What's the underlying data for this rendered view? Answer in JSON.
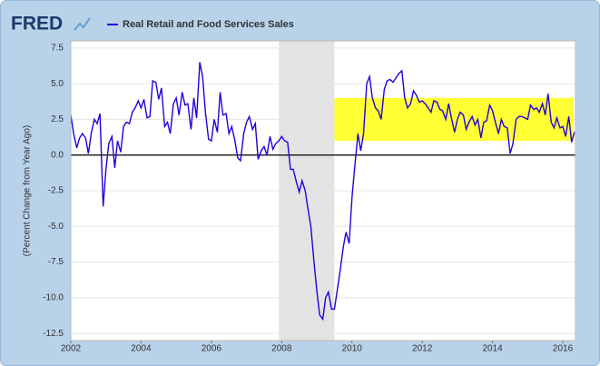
{
  "chart_data": {
    "type": "line",
    "logo": "FRED",
    "ylabel": "(Percent Change from Year Ago)",
    "xlim": [
      2002,
      2016.36
    ],
    "xticks": [
      2002,
      2004,
      2006,
      2008,
      2010,
      2012,
      2014,
      2016
    ],
    "ylim": [
      -13,
      8
    ],
    "yticks": [
      7.5,
      {
        "value": 5,
        "label": "5.0"
      },
      2.5,
      {
        "value": 0,
        "label": "0.0"
      },
      -2.5,
      {
        "value": -5,
        "label": "-5.0"
      },
      -7.5,
      {
        "value": -10,
        "label": "-10.0"
      },
      -12.5
    ],
    "grid": true,
    "recession": [
      2007.92,
      2009.5
    ],
    "highlight": {
      "xlim": [
        2009.5,
        2016.3
      ],
      "ylim": [
        1,
        4
      ],
      "color": "#ffff33"
    },
    "x": [
      2002.0,
      2002.08,
      2002.17,
      2002.25,
      2002.33,
      2002.42,
      2002.5,
      2002.58,
      2002.67,
      2002.75,
      2002.83,
      2002.92,
      2003.0,
      2003.08,
      2003.17,
      2003.25,
      2003.33,
      2003.42,
      2003.5,
      2003.58,
      2003.67,
      2003.75,
      2003.83,
      2003.92,
      2004.0,
      2004.08,
      2004.17,
      2004.25,
      2004.33,
      2004.42,
      2004.5,
      2004.58,
      2004.67,
      2004.75,
      2004.83,
      2004.92,
      2005.0,
      2005.08,
      2005.17,
      2005.25,
      2005.33,
      2005.42,
      2005.5,
      2005.58,
      2005.67,
      2005.75,
      2005.83,
      2005.92,
      2006.0,
      2006.08,
      2006.17,
      2006.25,
      2006.33,
      2006.42,
      2006.5,
      2006.58,
      2006.67,
      2006.75,
      2006.83,
      2006.92,
      2007.0,
      2007.08,
      2007.17,
      2007.25,
      2007.33,
      2007.42,
      2007.5,
      2007.58,
      2007.67,
      2007.75,
      2007.83,
      2007.92,
      2008.0,
      2008.08,
      2008.17,
      2008.25,
      2008.33,
      2008.42,
      2008.5,
      2008.58,
      2008.67,
      2008.75,
      2008.83,
      2008.92,
      2009.0,
      2009.08,
      2009.17,
      2009.25,
      2009.33,
      2009.42,
      2009.5,
      2009.58,
      2009.67,
      2009.75,
      2009.83,
      2009.92,
      2010.0,
      2010.08,
      2010.17,
      2010.25,
      2010.33,
      2010.42,
      2010.5,
      2010.58,
      2010.67,
      2010.75,
      2010.83,
      2010.92,
      2011.0,
      2011.08,
      2011.17,
      2011.25,
      2011.33,
      2011.42,
      2011.5,
      2011.58,
      2011.67,
      2011.75,
      2011.83,
      2011.92,
      2012.0,
      2012.08,
      2012.17,
      2012.25,
      2012.33,
      2012.42,
      2012.5,
      2012.58,
      2012.67,
      2012.75,
      2012.83,
      2012.92,
      2013.0,
      2013.08,
      2013.17,
      2013.25,
      2013.33,
      2013.42,
      2013.5,
      2013.58,
      2013.67,
      2013.75,
      2013.83,
      2013.92,
      2014.0,
      2014.08,
      2014.17,
      2014.25,
      2014.33,
      2014.42,
      2014.5,
      2014.58,
      2014.67,
      2014.75,
      2014.83,
      2014.92,
      2015.0,
      2015.08,
      2015.17,
      2015.25,
      2015.33,
      2015.42,
      2015.5,
      2015.58,
      2015.67,
      2015.75,
      2015.83,
      2015.92,
      2016.0,
      2016.08,
      2016.17,
      2016.25,
      2016.33
    ],
    "series": [
      {
        "name": "Real Retail and Food Services Sales",
        "color": "#2200dd",
        "values": [
          2.8,
          1.5,
          0.5,
          1.2,
          1.5,
          1.2,
          0.1,
          1.5,
          2.5,
          2.2,
          2.9,
          -3.6,
          -1.0,
          0.8,
          1.3,
          -0.9,
          1.0,
          0.2,
          2.0,
          2.3,
          2.2,
          3.0,
          3.3,
          3.8,
          3.3,
          3.9,
          2.6,
          2.7,
          5.2,
          5.1,
          3.9,
          4.7,
          2.0,
          2.3,
          1.5,
          3.6,
          4.0,
          2.8,
          4.4,
          3.5,
          3.6,
          1.8,
          4.0,
          2.6,
          6.5,
          5.5,
          3.0,
          1.1,
          1.0,
          2.5,
          1.6,
          4.4,
          2.8,
          2.9,
          1.5,
          2.0,
          1.0,
          -0.2,
          -0.4,
          1.5,
          2.3,
          2.7,
          1.8,
          2.2,
          -0.3,
          0.3,
          0.6,
          0.0,
          1.3,
          0.4,
          0.8,
          1.0,
          1.3,
          1.0,
          0.9,
          -1.0,
          -1.0,
          -1.9,
          -2.6,
          -1.8,
          -2.5,
          -3.8,
          -5.0,
          -7.5,
          -9.5,
          -11.2,
          -11.5,
          -10.0,
          -9.6,
          -10.8,
          -10.8,
          -9.5,
          -8.0,
          -6.5,
          -5.4,
          -6.2,
          -3.0,
          -0.8,
          1.5,
          0.3,
          1.5,
          5.0,
          5.5,
          4.0,
          3.3,
          3.1,
          2.5,
          4.6,
          5.2,
          5.3,
          5.1,
          5.4,
          5.7,
          5.9,
          4.0,
          3.3,
          3.6,
          4.5,
          4.2,
          3.7,
          3.8,
          3.6,
          3.3,
          3.0,
          3.8,
          3.7,
          3.2,
          3.1,
          2.5,
          3.6,
          2.6,
          1.6,
          2.5,
          3.0,
          2.8,
          1.8,
          2.3,
          2.7,
          2.1,
          2.5,
          1.2,
          2.3,
          2.4,
          3.5,
          3.1,
          2.3,
          1.5,
          2.5,
          2.0,
          1.9,
          0.1,
          0.8,
          2.5,
          2.7,
          2.7,
          2.6,
          2.5,
          3.5,
          3.2,
          3.3,
          3.0,
          3.6,
          2.8,
          4.3,
          2.3,
          1.9,
          2.6,
          1.9,
          2.0,
          1.3,
          2.7,
          0.9,
          1.6
        ]
      }
    ]
  }
}
